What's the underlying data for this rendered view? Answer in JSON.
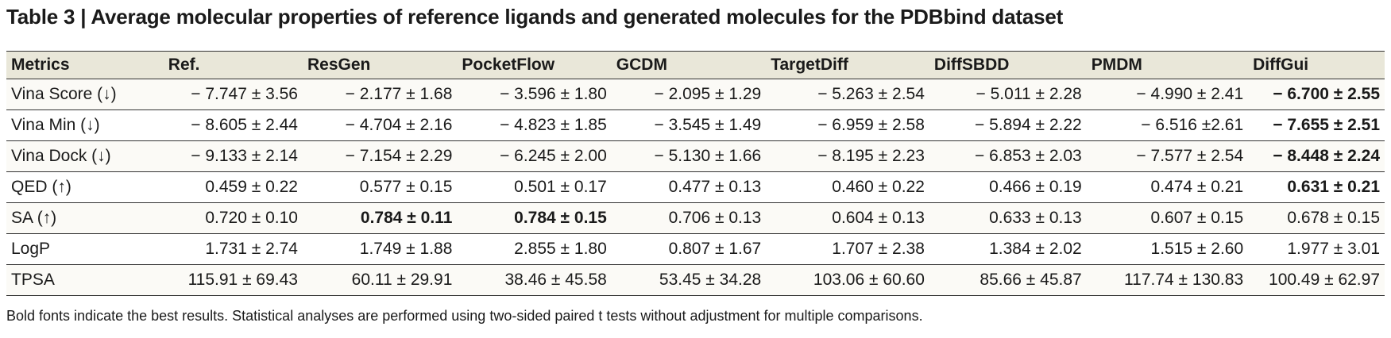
{
  "title": "Table 3 | Average molecular properties of reference ligands and generated molecules for the PDBbind dataset",
  "table": {
    "headers": [
      "Metrics",
      "Ref.",
      "ResGen",
      "PocketFlow",
      "GCDM",
      "TargetDiff",
      "DiffSBDD",
      "PMDM",
      "DiffGui"
    ],
    "rows": [
      {
        "metric": "Vina Score (↓)",
        "cells": [
          "− 7.747 ± 3.56",
          "− 2.177 ± 1.68",
          "− 3.596 ± 1.80",
          "− 2.095 ± 1.29",
          "− 5.263 ± 2.54",
          "− 5.011 ± 2.28",
          "− 4.990  ± 2.41",
          "− 6.700 ± 2.55"
        ],
        "bold": [
          false,
          false,
          false,
          false,
          false,
          false,
          false,
          true
        ]
      },
      {
        "metric": "Vina Min (↓)",
        "cells": [
          "− 8.605 ± 2.44",
          "− 4.704 ± 2.16",
          "− 4.823 ± 1.85",
          "− 3.545 ± 1.49",
          "− 6.959 ± 2.58",
          "− 5.894 ± 2.22",
          "− 6.516 ±2.61",
          "− 7.655 ± 2.51"
        ],
        "bold": [
          false,
          false,
          false,
          false,
          false,
          false,
          false,
          true
        ]
      },
      {
        "metric": "Vina Dock (↓)",
        "cells": [
          "− 9.133 ± 2.14",
          "− 7.154 ± 2.29",
          "− 6.245 ± 2.00",
          "− 5.130 ± 1.66",
          "− 8.195 ± 2.23",
          "− 6.853 ± 2.03",
          "− 7.577 ± 2.54",
          "− 8.448 ± 2.24"
        ],
        "bold": [
          false,
          false,
          false,
          false,
          false,
          false,
          false,
          true
        ]
      },
      {
        "metric": "QED (↑)",
        "cells": [
          "0.459 ± 0.22",
          "0.577 ± 0.15",
          "0.501 ± 0.17",
          "0.477 ± 0.13",
          "0.460 ± 0.22",
          "0.466 ± 0.19",
          "0.474 ± 0.21",
          "0.631 ± 0.21"
        ],
        "bold": [
          false,
          false,
          false,
          false,
          false,
          false,
          false,
          true
        ]
      },
      {
        "metric": "SA (↑)",
        "cells": [
          "0.720 ± 0.10",
          "0.784 ± 0.11",
          "0.784 ± 0.15",
          "0.706 ± 0.13",
          "0.604 ± 0.13",
          "0.633 ± 0.13",
          "0.607 ± 0.15",
          "0.678 ± 0.15"
        ],
        "bold": [
          false,
          true,
          true,
          false,
          false,
          false,
          false,
          false
        ]
      },
      {
        "metric": "LogP",
        "cells": [
          "1.731 ± 2.74",
          "1.749 ± 1.88",
          "2.855 ± 1.80",
          "0.807 ± 1.67",
          "1.707 ± 2.38",
          "1.384 ± 2.02",
          "1.515 ± 2.60",
          "1.977 ± 3.01"
        ],
        "bold": [
          false,
          false,
          false,
          false,
          false,
          false,
          false,
          false
        ]
      },
      {
        "metric": "TPSA",
        "cells": [
          "115.91 ± 69.43",
          "60.11 ± 29.91",
          "38.46 ± 45.58",
          "53.45 ± 34.28",
          "103.06 ± 60.60",
          "85.66 ± 45.87",
          "117.74 ± 130.83",
          "100.49 ± 62.97"
        ],
        "bold": [
          false,
          false,
          false,
          false,
          false,
          false,
          false,
          false
        ]
      }
    ]
  },
  "footnote": "Bold fonts indicate the best results. Statistical analyses are performed using two-sided paired t tests without adjustment for multiple comparisons."
}
